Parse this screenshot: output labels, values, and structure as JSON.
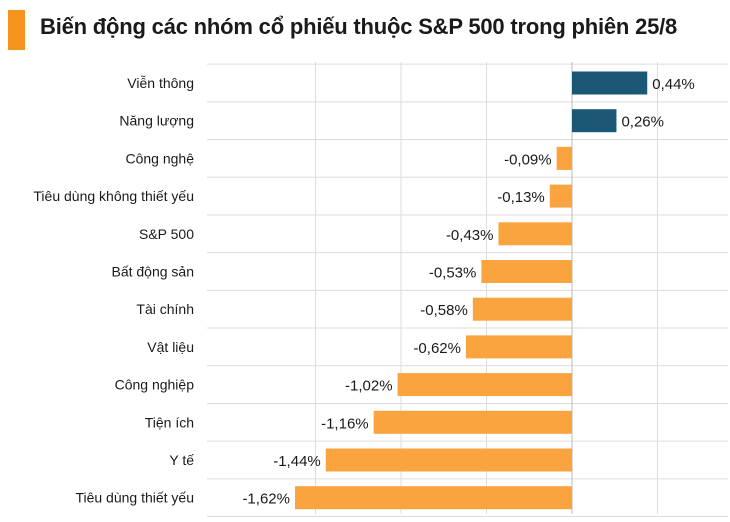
{
  "colors": {
    "positive": "#1B5875",
    "negative": "#F9A43F",
    "accent": "#F7941D",
    "grid": "#DDDDDD",
    "text": "#1a1a1a"
  },
  "chart_data": {
    "type": "bar",
    "orientation": "horizontal",
    "title": "Biến động các nhóm cổ phiếu thuộc S&P 500 trong phiên 25/8",
    "unit": "%",
    "grid": true,
    "categories": [
      "Viễn thông",
      "Năng lượng",
      "Công nghệ",
      "Tiêu dùng không thiết yếu",
      "S&P 500",
      "Bất động sản",
      "Tài chính",
      "Vật liệu",
      "Công nghiệp",
      "Tiện ích",
      "Y tế",
      "Tiêu dùng thiết yếu"
    ],
    "values": [
      0.44,
      0.26,
      -0.09,
      -0.13,
      -0.43,
      -0.53,
      -0.58,
      -0.62,
      -1.02,
      -1.16,
      -1.44,
      -1.62
    ],
    "value_labels": [
      "0,44%",
      "0,26%",
      "-0,09%",
      "-0,13%",
      "-0,43%",
      "-0,53%",
      "-0,58%",
      "-0,62%",
      "-1,02%",
      "-1,16%",
      "-1,44%",
      "-1,62%"
    ],
    "xlim": [
      -1.8,
      0.9
    ]
  }
}
